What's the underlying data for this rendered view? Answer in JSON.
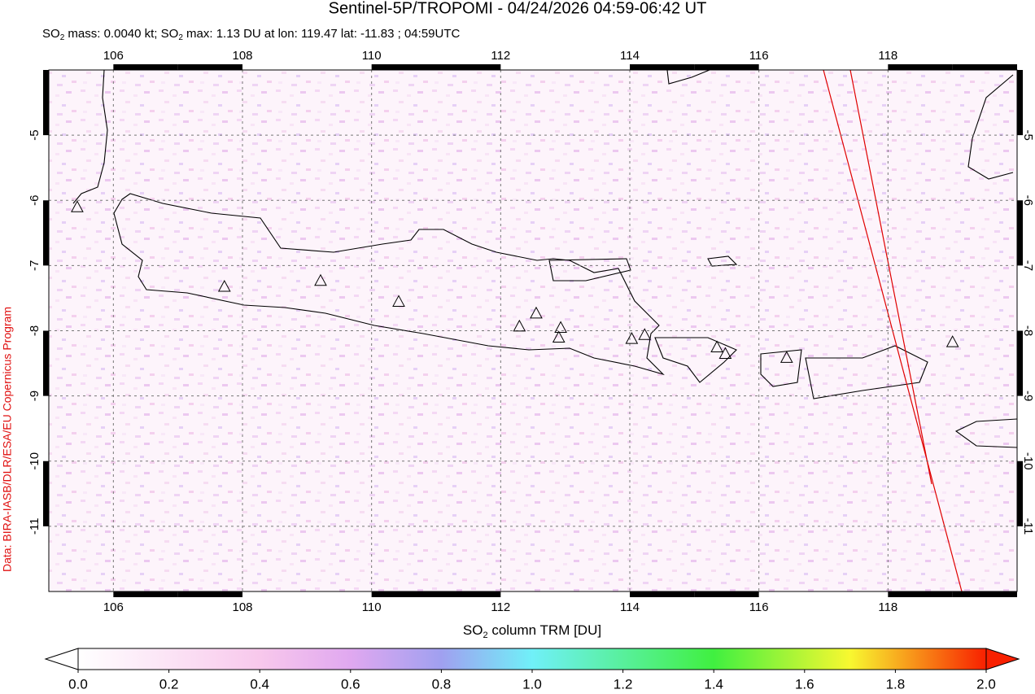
{
  "title": "Sentinel-5P/TROPOMI - 04/24/2026 04:59-06:42 UT",
  "subtitle_parts": [
    "SO",
    "2",
    " mass: 0.0040 kt; SO",
    "2",
    " max: 1.13 DU at lon: 119.47 lat: -11.83 ; 04:59UTC"
  ],
  "side_note": "Data: BIRA-IASB/DLR/ESA/EU Copernicus Program",
  "map": {
    "xlim": [
      105,
      120
    ],
    "ylim": [
      -12,
      -4
    ],
    "xticks": [
      106,
      108,
      110,
      112,
      114,
      116,
      118
    ],
    "yticks": [
      -5,
      -6,
      -7,
      -8,
      -9,
      -10,
      -11
    ],
    "grid": true,
    "volcanoes": {
      "lon": [
        107.72,
        109.21,
        110.42,
        112.29,
        112.55,
        112.93,
        112.9,
        114.03,
        114.23,
        115.35,
        115.48,
        116.43,
        119.0,
        105.44
      ],
      "lat": [
        -7.32,
        -7.23,
        -7.55,
        -7.93,
        -7.73,
        -7.95,
        -8.1,
        -8.12,
        -8.06,
        -8.25,
        -8.35,
        -8.41,
        -8.17,
        -6.1
      ]
    }
  },
  "colorbar": {
    "label_parts": [
      "SO",
      "2",
      " column TRM [DU]"
    ],
    "lim": [
      0,
      2
    ],
    "ticks": [
      {
        "value": 0,
        "label": "0.0"
      },
      {
        "value": 0.2,
        "label": "0.2"
      },
      {
        "value": 0.4,
        "label": "0.4"
      },
      {
        "value": 0.6,
        "label": "0.6"
      },
      {
        "value": 0.8,
        "label": "0.8"
      },
      {
        "value": 1,
        "label": "1.0"
      },
      {
        "value": 1.2,
        "label": "1.2"
      },
      {
        "value": 1.4,
        "label": "1.4"
      },
      {
        "value": 1.6,
        "label": "1.6"
      },
      {
        "value": 1.8,
        "label": "1.8"
      },
      {
        "value": 2,
        "label": "2.0"
      }
    ]
  }
}
